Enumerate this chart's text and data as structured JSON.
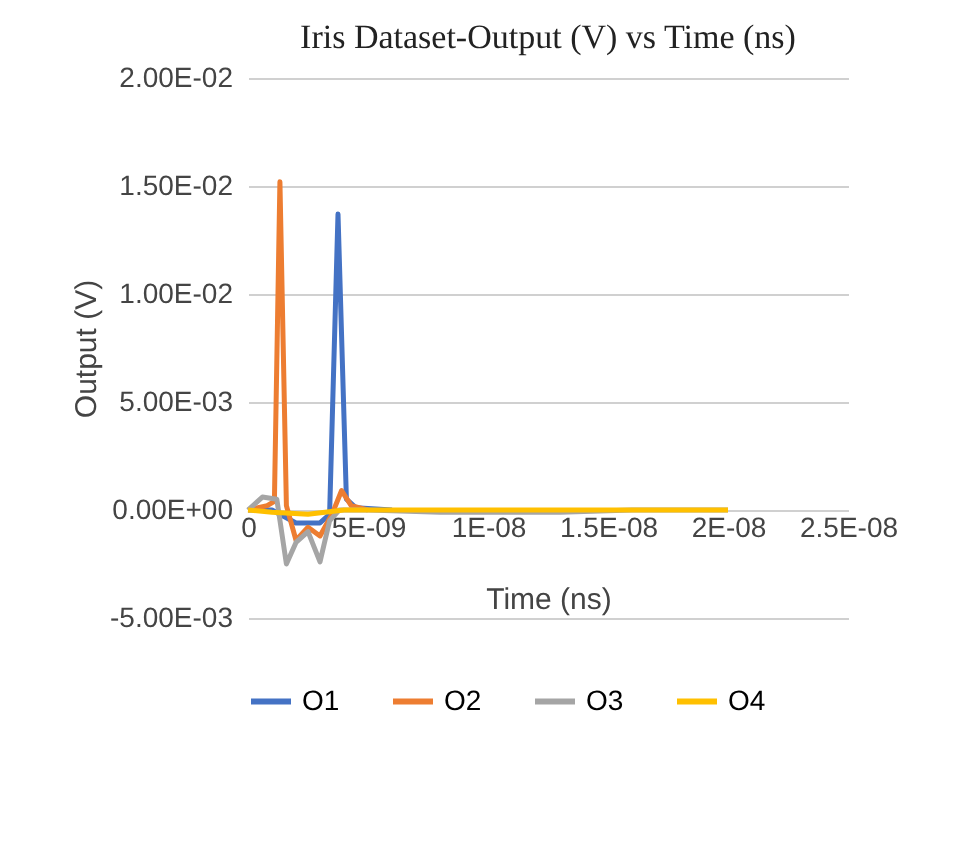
{
  "chart_data": {
    "type": "line",
    "title": "Iris Dataset-Output (V) vs Time (ns)",
    "xlabel": "Time (ns)",
    "ylabel": "Output (V)",
    "xlim": [
      0,
      2.5e-08
    ],
    "xticks": [
      0,
      {
        "value": 5e-09,
        "label": "5E-09"
      },
      {
        "value": 1e-08,
        "label": "1E-08"
      },
      {
        "value": 1.5e-08,
        "label": "1.5E-08"
      },
      {
        "value": 2e-08,
        "label": "2E-08"
      },
      {
        "value": 2.5e-08,
        "label": "2.5E-08"
      }
    ],
    "ylim": [
      -0.005,
      0.02
    ],
    "yticks": [
      {
        "value": -0.005,
        "label": "-5.00E-03"
      },
      {
        "value": 0,
        "label": "0.00E+00"
      },
      {
        "value": 0.005,
        "label": "5.00E-03"
      },
      {
        "value": 0.01,
        "label": "1.00E-02"
      },
      {
        "value": 0.015,
        "label": "1.50E-02"
      },
      {
        "value": 0.02,
        "label": "2.00E-02"
      }
    ],
    "grid": "y",
    "legend": "bottom",
    "marker": "none",
    "line_style": "solid",
    "series": [
      {
        "name": "O1",
        "color": "#4472c4",
        "x": [
          0,
          1e-09,
          1.5e-09,
          2e-09,
          3e-09,
          3.4e-09,
          3.75e-09,
          4.1e-09,
          4.5e-09,
          6e-09
        ],
        "values": [
          0,
          0,
          -0.0003,
          -0.0006,
          -0.0006,
          -0.0002,
          0.0137,
          0.0005,
          0.0001,
          0
        ]
      },
      {
        "name": "O2",
        "color": "#ed7d31",
        "x": [
          0,
          8e-10,
          1.1e-09,
          1.33e-09,
          1.6e-09,
          2e-09,
          2.5e-09,
          3e-09,
          3.5e-09,
          3.9e-09,
          4.3e-09,
          5e-09
        ],
        "values": [
          0,
          0.0002,
          0.0004,
          0.0152,
          0.0002,
          -0.0014,
          -0.0008,
          -0.0012,
          -0.0002,
          0.0009,
          0.0002,
          0
        ]
      },
      {
        "name": "O3",
        "color": "#a5a5a5",
        "x": [
          0,
          6e-10,
          1.2e-09,
          1.6e-09,
          2e-09,
          2.5e-09,
          3e-09,
          3.4e-09,
          3.8e-09,
          5e-09,
          8e-09,
          1.3e-08,
          1.6e-08,
          2e-08
        ],
        "values": [
          0,
          0.0006,
          0.0005,
          -0.0025,
          -0.0015,
          -0.001,
          -0.0024,
          -0.0005,
          0,
          0,
          -0.0001,
          -0.0001,
          0,
          0
        ]
      },
      {
        "name": "O4",
        "color": "#ffc000",
        "x": [
          0,
          1e-09,
          2.5e-09,
          4e-09,
          6e-09,
          1e-08,
          1.5e-08,
          2e-08
        ],
        "values": [
          0,
          -0.0001,
          -0.0002,
          0,
          0,
          0,
          0,
          0
        ]
      }
    ]
  }
}
